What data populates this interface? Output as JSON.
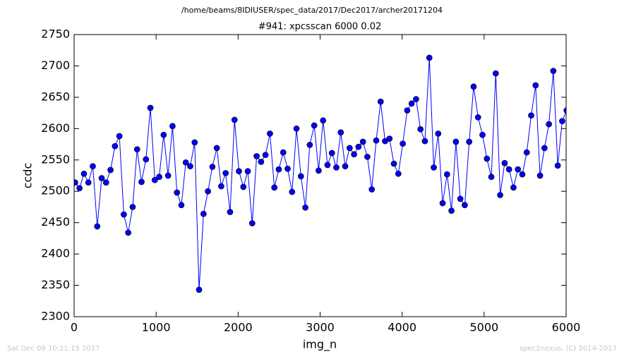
{
  "chart_data": {
    "type": "line",
    "suptitle": "/home/beams/8IDIUSER/spec_data/2017/Dec2017/archer20171204",
    "title": "#941: xpcsscan 6000 0.02",
    "x_label": "img_n",
    "y_label": "ccdc",
    "x": [
      12,
      66,
      120,
      174,
      228,
      282,
      336,
      390,
      444,
      498,
      552,
      606,
      660,
      714,
      768,
      822,
      876,
      930,
      984,
      1038,
      1092,
      1146,
      1200,
      1254,
      1308,
      1362,
      1416,
      1470,
      1524,
      1578,
      1632,
      1686,
      1740,
      1794,
      1848,
      1902,
      1956,
      2010,
      2064,
      2118,
      2172,
      2226,
      2280,
      2334,
      2388,
      2442,
      2496,
      2550,
      2604,
      2658,
      2712,
      2766,
      2820,
      2874,
      2928,
      2982,
      3036,
      3090,
      3144,
      3198,
      3252,
      3306,
      3360,
      3414,
      3468,
      3522,
      3576,
      3630,
      3684,
      3738,
      3792,
      3846,
      3900,
      3954,
      4008,
      4062,
      4116,
      4170,
      4224,
      4278,
      4332,
      4386,
      4440,
      4494,
      4548,
      4602,
      4656,
      4710,
      4764,
      4818,
      4872,
      4926,
      4980,
      5034,
      5088,
      5142,
      5196,
      5250,
      5304,
      5358,
      5412,
      5466,
      5520,
      5574,
      5628,
      5682,
      5736,
      5790,
      5844,
      5898,
      5952,
      6006
    ],
    "series": [
      {
        "color": "#0000ff",
        "values": [
          2514,
          2505,
          2528,
          2514,
          2540,
          2444,
          2521,
          2514,
          2534,
          2572,
          2588,
          2463,
          2434,
          2475,
          2567,
          2515,
          2551,
          2633,
          2518,
          2523,
          2590,
          2525,
          2604,
          2498,
          2478,
          2546,
          2540,
          2578,
          2343,
          2464,
          2500,
          2539,
          2569,
          2508,
          2529,
          2467,
          2614,
          2532,
          2507,
          2532,
          2449,
          2556,
          2547,
          2558,
          2592,
          2506,
          2535,
          2562,
          2536,
          2499,
          2600,
          2524,
          2474,
          2574,
          2605,
          2533,
          2613,
          2542,
          2561,
          2538,
          2594,
          2540,
          2569,
          2559,
          2571,
          2579,
          2555,
          2503,
          2581,
          2643,
          2580,
          2584,
          2544,
          2528,
          2576,
          2629,
          2640,
          2647,
          2599,
          2580,
          2713,
          2538,
          2592,
          2481,
          2527,
          2469,
          2579,
          2488,
          2478,
          2579,
          2667,
          2618,
          2590,
          2552,
          2523,
          2688,
          2494,
          2545,
          2535,
          2506,
          2535,
          2527,
          2562,
          2621,
          2669,
          2525,
          2569,
          2607,
          2692,
          2541,
          2612,
          2629
        ]
      }
    ],
    "xlim": [
      0,
      6000
    ],
    "xticks": [
      0,
      1000,
      2000,
      3000,
      4000,
      5000,
      6000
    ],
    "ylim": [
      2300,
      2750
    ],
    "yticks": [
      2300,
      2350,
      2400,
      2450,
      2500,
      2550,
      2600,
      2650,
      2700,
      2750
    ],
    "grid": false
  },
  "footer": {
    "left": "Sat Dec 09 10:21:15 2017",
    "right": "spec2nexus, (C) 2014-2017"
  }
}
